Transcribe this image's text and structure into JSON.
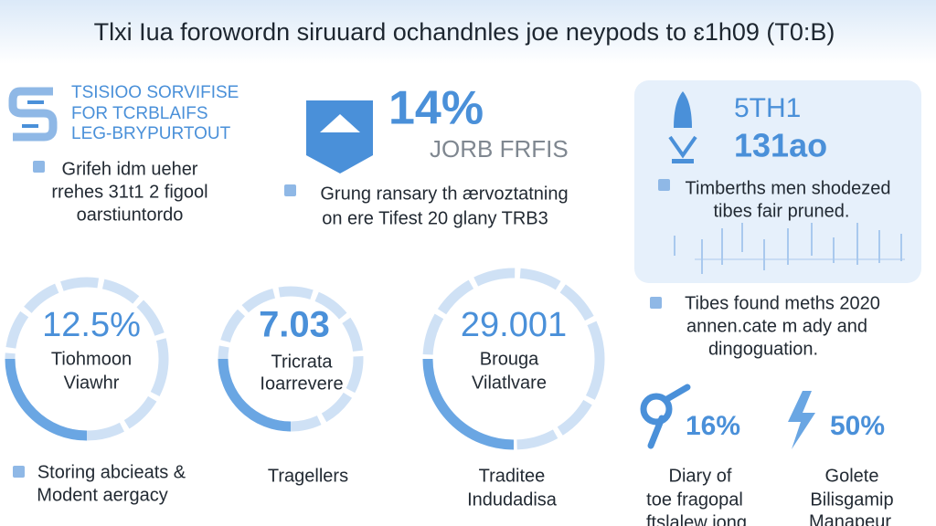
{
  "title": "Tlxi Iua forowordn siruuard ochandnles joe neypods to ɛ1h09 (T0:B)",
  "top_left": {
    "heading": [
      "TSISIOO SORVIFISE",
      "FOR TCRBLAIFS",
      "LEG-BRYPURTOUT"
    ],
    "note": [
      "Grifeh idm ueher",
      "rrehes 31t1 2 figool",
      "oarstiuntordo"
    ]
  },
  "top_middle": {
    "stat": "14%",
    "stat_label": "JORB FRFIS",
    "note": [
      "Grung ransary th ærvoztatning",
      "on ere Tifest 20 glany TRB3"
    ]
  },
  "top_right": {
    "label": "5TH1",
    "stat": "131ao",
    "note": [
      "Timberths men shodezed",
      "tibes fair pruned."
    ],
    "footer_note": [
      "Tibes found meths 2020",
      "annen.cate m ady and",
      "dingoguation."
    ]
  },
  "rings": [
    {
      "value": "12.5%",
      "label": [
        "Tiohmoon",
        "Viawhr"
      ],
      "caption": [
        "Storing abcieats &",
        "Modent aergacy"
      ]
    },
    {
      "value": "7.03",
      "label": [
        "Tricrata",
        "Ioarrevere"
      ],
      "caption": [
        "Tragellers"
      ]
    },
    {
      "value": "29.001",
      "label": [
        "Brouga",
        "Vilatlvare"
      ],
      "caption": [
        "Traditee",
        "Indudadisa"
      ]
    }
  ],
  "small_stats": [
    {
      "value": "16%",
      "caption": [
        "Diary of",
        "toe fragopal",
        "ftslalew iong"
      ]
    },
    {
      "value": "50%",
      "caption": [
        "Golete",
        "Bilisgamip",
        "Manapeur"
      ]
    }
  ]
}
